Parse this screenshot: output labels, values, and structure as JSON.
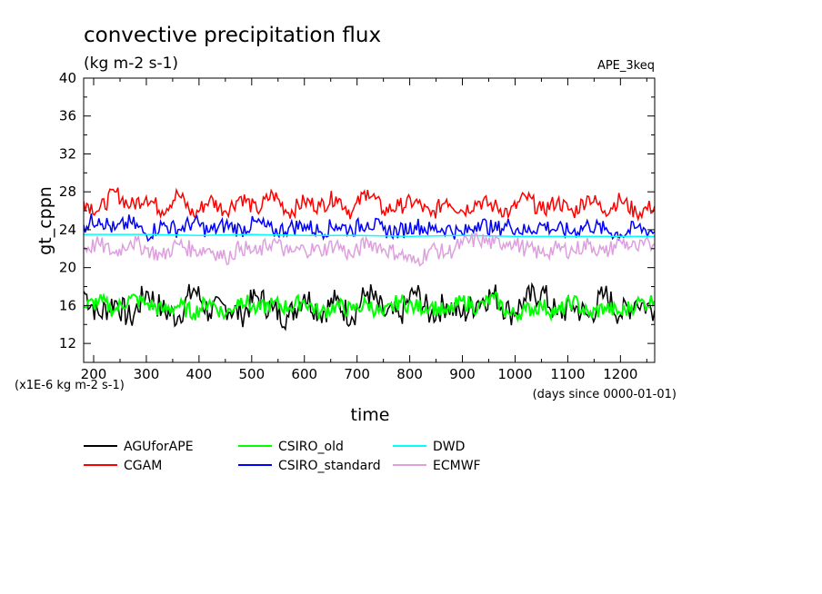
{
  "chart_data": {
    "type": "line",
    "title": "convective precipitation flux",
    "subtitle": "(kg m-2 s-1)",
    "experiment": "APE_3keq",
    "xlabel": "time",
    "ylabel": "gt_cppn",
    "x_units": "(days since 0000-01-01)",
    "y_scale": "(x1E-6 kg m-2 s-1)",
    "xlim": [
      181,
      1265
    ],
    "ylim": [
      10,
      40
    ],
    "x_ticks": [
      200,
      300,
      400,
      500,
      600,
      700,
      800,
      900,
      1000,
      1100,
      1200
    ],
    "y_ticks": [
      12,
      16,
      20,
      24,
      28,
      32,
      36,
      40
    ],
    "grid": false,
    "legend_position": "bottom",
    "series": [
      {
        "name": "AGUforAPE",
        "color": "#000000",
        "x": [
          181,
          210,
          240,
          270,
          300,
          330,
          360,
          390,
          420,
          450,
          480,
          510,
          540,
          570,
          600,
          630,
          660,
          690,
          720,
          750,
          780,
          810,
          840,
          870,
          900,
          930,
          960,
          990,
          1020,
          1050,
          1080,
          1110,
          1140,
          1170,
          1200,
          1230,
          1265
        ],
        "y": [
          17.5,
          15.0,
          16.5,
          14.5,
          17.5,
          15.5,
          14.8,
          17.8,
          15.2,
          16.0,
          15.0,
          17.0,
          15.5,
          14.8,
          17.2,
          15.2,
          16.5,
          14.8,
          17.5,
          15.2,
          14.8,
          17.5,
          15.0,
          16.2,
          15.0,
          16.5,
          17.2,
          15.2,
          16.5,
          17.5,
          15.0,
          16.0,
          14.8,
          17.2,
          15.0,
          16.5,
          15.5
        ]
      },
      {
        "name": "CGAM",
        "color": "#ff0000",
        "x": [
          181,
          210,
          240,
          270,
          300,
          330,
          360,
          390,
          420,
          450,
          480,
          510,
          540,
          570,
          600,
          630,
          660,
          690,
          720,
          750,
          780,
          810,
          840,
          870,
          900,
          930,
          960,
          990,
          1020,
          1050,
          1080,
          1110,
          1140,
          1170,
          1200,
          1230,
          1265
        ],
        "y": [
          27.0,
          26.0,
          28.0,
          26.5,
          27.5,
          26.0,
          27.8,
          25.5,
          27.2,
          26.0,
          27.5,
          26.0,
          27.8,
          25.8,
          27.0,
          26.5,
          27.5,
          25.8,
          28.2,
          26.0,
          26.5,
          27.0,
          25.5,
          27.2,
          26.0,
          27.0,
          26.5,
          25.8,
          27.5,
          26.0,
          27.0,
          25.8,
          27.5,
          26.0,
          27.2,
          25.8,
          26.5
        ]
      },
      {
        "name": "CSIRO_old",
        "color": "#00ff00",
        "x": [
          181,
          210,
          240,
          270,
          300,
          330,
          360,
          390,
          420,
          450,
          480,
          510,
          540,
          570,
          600,
          630,
          660,
          690,
          720,
          750,
          780,
          810,
          840,
          870,
          900,
          930,
          960,
          990,
          1020,
          1050,
          1080,
          1110,
          1140,
          1170,
          1200,
          1230,
          1265
        ],
        "y": [
          15.8,
          16.5,
          15.5,
          16.8,
          16.2,
          15.5,
          16.0,
          15.2,
          16.5,
          15.0,
          16.8,
          15.5,
          16.2,
          15.8,
          16.5,
          15.2,
          16.0,
          15.5,
          16.2,
          15.0,
          16.5,
          15.8,
          16.0,
          15.2,
          16.5,
          15.8,
          16.8,
          15.0,
          15.5,
          16.0,
          15.2,
          16.5,
          15.0,
          15.8,
          15.2,
          16.2,
          16.5
        ]
      },
      {
        "name": "CSIRO_standard",
        "color": "#0000ff",
        "x": [
          181,
          210,
          240,
          270,
          300,
          330,
          360,
          390,
          420,
          450,
          480,
          510,
          540,
          570,
          600,
          630,
          660,
          690,
          720,
          750,
          780,
          810,
          840,
          870,
          900,
          930,
          960,
          990,
          1020,
          1050,
          1080,
          1110,
          1140,
          1170,
          1200,
          1230,
          1265
        ],
        "y": [
          24.5,
          25.2,
          24.0,
          24.8,
          23.5,
          24.5,
          24.0,
          24.8,
          23.8,
          24.5,
          24.0,
          24.8,
          23.8,
          24.2,
          24.5,
          23.8,
          24.5,
          24.0,
          24.8,
          24.0,
          23.8,
          24.5,
          24.0,
          24.2,
          23.5,
          24.8,
          24.0,
          24.5,
          23.8,
          24.5,
          24.0,
          23.8,
          24.5,
          24.0,
          23.5,
          24.2,
          23.8
        ]
      },
      {
        "name": "DWD",
        "color": "#00ffff",
        "x": [
          181,
          300,
          400,
          500,
          600,
          700,
          800,
          900,
          1000,
          1100,
          1200,
          1265
        ],
        "y": [
          23.5,
          23.5,
          23.4,
          23.5,
          23.4,
          23.4,
          23.3,
          23.4,
          23.3,
          23.3,
          23.3,
          23.3
        ]
      },
      {
        "name": "ECMWF",
        "color": "#dda0dd",
        "x": [
          181,
          210,
          240,
          270,
          300,
          330,
          360,
          390,
          420,
          450,
          480,
          510,
          540,
          570,
          600,
          630,
          660,
          690,
          720,
          750,
          780,
          810,
          840,
          870,
          900,
          930,
          960,
          990,
          1020,
          1050,
          1080,
          1110,
          1140,
          1170,
          1200,
          1230,
          1265
        ],
        "y": [
          22.0,
          22.5,
          21.5,
          22.8,
          22.0,
          21.2,
          22.5,
          21.8,
          22.0,
          21.0,
          22.2,
          21.5,
          22.8,
          21.5,
          22.0,
          21.8,
          22.5,
          21.2,
          22.8,
          22.0,
          21.5,
          20.5,
          22.0,
          21.5,
          22.5,
          23.0,
          22.5,
          22.8,
          22.0,
          21.5,
          22.0,
          21.8,
          22.5,
          21.5,
          22.8,
          22.0,
          22.5
        ]
      }
    ]
  }
}
